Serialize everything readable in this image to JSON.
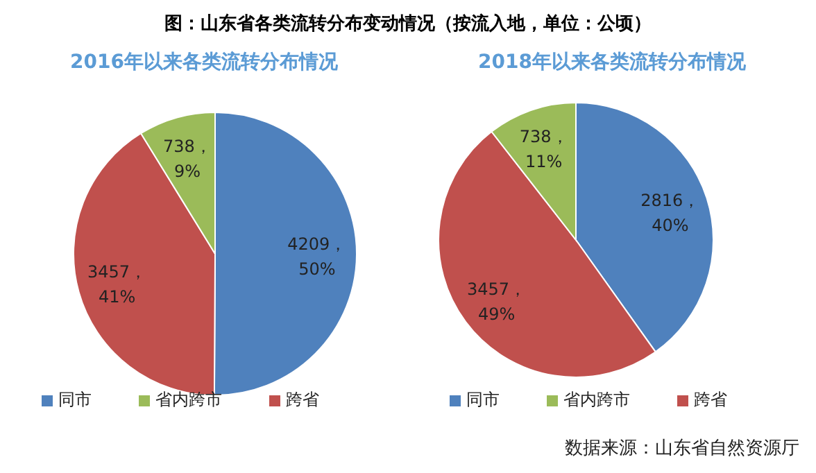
{
  "chart_data": [
    {
      "type": "pie",
      "title": "2016年以来各类流转分布情况",
      "annotations": [
        "图：山东省各类流转分布变动情况（按流入地，单位：公顷）"
      ],
      "categories": [
        "同市",
        "跨省",
        "省内跨市"
      ],
      "values": [
        4209,
        3457,
        738
      ],
      "colors": [
        "#4f81bd",
        "#c0504d",
        "#9bbb59"
      ],
      "value_labels": [
        "4209，50%",
        "3457，41%",
        "738，9%"
      ],
      "legend": "bottom"
    },
    {
      "type": "pie",
      "title": "2018年以来各类流转分布情况",
      "annotations": [
        "数据来源：山东省自然资源厅"
      ],
      "categories": [
        "同市",
        "跨省",
        "省内跨市"
      ],
      "values": [
        2816,
        3457,
        738
      ],
      "colors": [
        "#4f81bd",
        "#c0504d",
        "#9bbb59"
      ],
      "value_labels": [
        "2816，40%",
        "3457，49%",
        "738，11%"
      ],
      "legend": "bottom"
    }
  ]
}
